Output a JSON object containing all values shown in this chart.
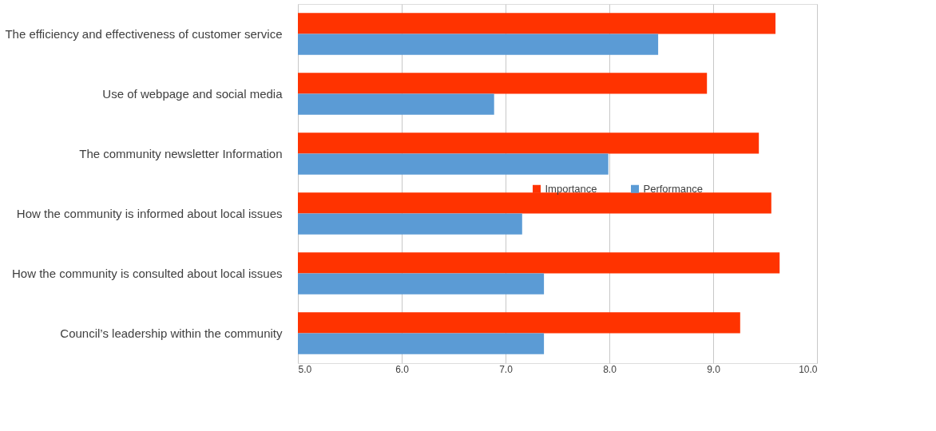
{
  "chart_data": {
    "type": "bar",
    "orientation": "horizontal",
    "categories": [
      "The efficiency and effectiveness of customer service",
      "Use of webpage and social media",
      "The community newsletter Information",
      "How the community is informed about local issues",
      "How the community is consulted about local issues",
      "Council’s leadership within the community"
    ],
    "series": [
      {
        "name": "Importance",
        "color": "#ff3300",
        "values": [
          9.6,
          8.94,
          9.44,
          9.56,
          9.64,
          9.26
        ]
      },
      {
        "name": "Performance",
        "color": "#5b9bd5",
        "values": [
          8.47,
          6.89,
          7.99,
          7.16,
          7.37,
          7.37
        ]
      }
    ],
    "xlim": [
      5.0,
      10.0
    ],
    "xticks": [
      {
        "value": 5,
        "label": "5.0"
      },
      {
        "value": 6,
        "label": "6.0"
      },
      {
        "value": 7,
        "label": "7.0"
      },
      {
        "value": 8,
        "label": "8.0"
      },
      {
        "value": 9,
        "label": "9.0"
      },
      {
        "value": 10,
        "label": "10.0"
      }
    ],
    "grid": "x",
    "legend": "right"
  }
}
